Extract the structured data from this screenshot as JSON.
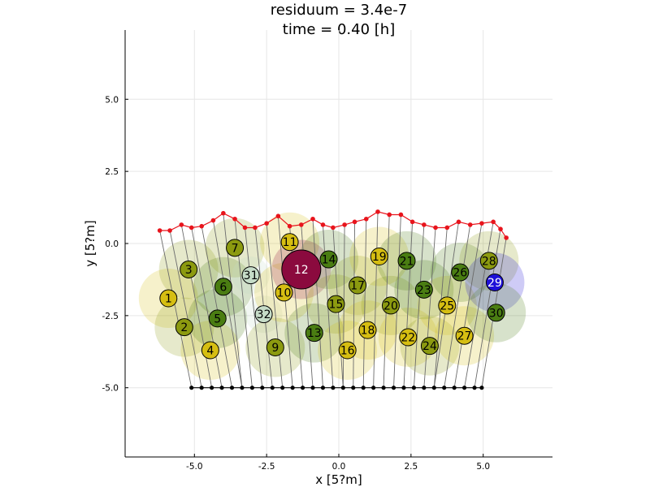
{
  "chart_data": {
    "type": "scatter",
    "title_lines": [
      "residuum = 3.4e-7",
      "time = 0.40 [h]"
    ],
    "xlabel": "x [5?m]",
    "ylabel": "y [5?m]",
    "xlim": [
      -7.4,
      7.4
    ],
    "ylim": [
      -7.4,
      7.4
    ],
    "xticks": [
      -5.0,
      -2.5,
      0.0,
      2.5,
      5.0
    ],
    "yticks": [
      -5.0,
      -2.5,
      0.0,
      2.5,
      5.0
    ],
    "xtick_labels": [
      "-5.0",
      "-2.5",
      "0.0",
      "2.5",
      "5.0"
    ],
    "ytick_labels": [
      "-5.0",
      "-2.5",
      "0.0",
      "2.5",
      "5.0"
    ],
    "grid": true,
    "colors": {
      "surface_red": "#e8141c",
      "base_black": "#000000",
      "spring_gray": "#6b6b6b",
      "yellow": "#d6be12",
      "olive": "#8c9a10",
      "green": "#4a7d12",
      "pale": "#c6dcc8",
      "darkred": "#8b0a3e",
      "blue": "#1e10d8"
    },
    "surface_points": [
      [
        -6.2,
        0.45
      ],
      [
        -5.85,
        0.45
      ],
      [
        -5.45,
        0.65
      ],
      [
        -5.1,
        0.55
      ],
      [
        -4.75,
        0.6
      ],
      [
        -4.35,
        0.8
      ],
      [
        -4.0,
        1.05
      ],
      [
        -3.6,
        0.85
      ],
      [
        -3.25,
        0.55
      ],
      [
        -2.9,
        0.55
      ],
      [
        -2.5,
        0.7
      ],
      [
        -2.1,
        0.95
      ],
      [
        -1.7,
        0.6
      ],
      [
        -1.3,
        0.65
      ],
      [
        -0.9,
        0.85
      ],
      [
        -0.55,
        0.65
      ],
      [
        -0.2,
        0.55
      ],
      [
        0.2,
        0.65
      ],
      [
        0.55,
        0.75
      ],
      [
        0.95,
        0.85
      ],
      [
        1.35,
        1.1
      ],
      [
        1.75,
        1.0
      ],
      [
        2.15,
        1.0
      ],
      [
        2.55,
        0.75
      ],
      [
        2.95,
        0.65
      ],
      [
        3.35,
        0.55
      ],
      [
        3.75,
        0.55
      ],
      [
        4.15,
        0.75
      ],
      [
        4.55,
        0.65
      ],
      [
        4.95,
        0.7
      ],
      [
        5.35,
        0.75
      ],
      [
        5.6,
        0.5
      ],
      [
        5.8,
        0.2
      ]
    ],
    "base_points": [
      [
        -5.1,
        -5.0
      ],
      [
        -4.75,
        -5.0
      ],
      [
        -4.4,
        -5.0
      ],
      [
        -4.05,
        -5.0
      ],
      [
        -3.7,
        -5.0
      ],
      [
        -3.35,
        -5.0
      ],
      [
        -3.0,
        -5.0
      ],
      [
        -2.65,
        -5.0
      ],
      [
        -2.3,
        -5.0
      ],
      [
        -1.95,
        -5.0
      ],
      [
        -1.6,
        -5.0
      ],
      [
        -1.25,
        -5.0
      ],
      [
        -0.9,
        -5.0
      ],
      [
        -0.55,
        -5.0
      ],
      [
        -0.2,
        -5.0
      ],
      [
        0.15,
        -5.0
      ],
      [
        0.5,
        -5.0
      ],
      [
        0.85,
        -5.0
      ],
      [
        1.2,
        -5.0
      ],
      [
        1.55,
        -5.0
      ],
      [
        1.9,
        -5.0
      ],
      [
        2.25,
        -5.0
      ],
      [
        2.6,
        -5.0
      ],
      [
        2.95,
        -5.0
      ],
      [
        3.3,
        -5.0
      ],
      [
        3.65,
        -5.0
      ],
      [
        4.0,
        -5.0
      ],
      [
        4.35,
        -5.0
      ],
      [
        4.7,
        -5.0
      ],
      [
        4.95,
        -5.0
      ]
    ],
    "cells": [
      {
        "id": "1",
        "x": -5.9,
        "y": -1.9,
        "r": 0.95,
        "color": "yellow",
        "text": "#000"
      },
      {
        "id": "2",
        "x": -5.35,
        "y": -2.9,
        "r": 0.95,
        "color": "olive",
        "text": "#000"
      },
      {
        "id": "3",
        "x": -5.2,
        "y": -0.9,
        "r": 0.95,
        "color": "olive",
        "text": "#000"
      },
      {
        "id": "4",
        "x": -4.45,
        "y": -3.7,
        "r": 0.95,
        "color": "yellow",
        "text": "#000"
      },
      {
        "id": "5",
        "x": -4.2,
        "y": -2.6,
        "r": 0.95,
        "color": "green",
        "text": "#000"
      },
      {
        "id": "6",
        "x": -4.0,
        "y": -1.5,
        "r": 0.95,
        "color": "green",
        "text": "#000"
      },
      {
        "id": "7",
        "x": -3.6,
        "y": -0.15,
        "r": 0.95,
        "color": "olive",
        "text": "#000"
      },
      {
        "id": "31",
        "x": -3.05,
        "y": -1.1,
        "r": 0.6,
        "color": "pale",
        "text": "#000"
      },
      {
        "id": "32",
        "x": -2.6,
        "y": -2.45,
        "r": 0.6,
        "color": "pale",
        "text": "#000"
      },
      {
        "id": "9",
        "x": -2.2,
        "y": -3.6,
        "r": 0.95,
        "color": "olive",
        "text": "#000"
      },
      {
        "id": "10",
        "x": -1.9,
        "y": -1.7,
        "r": 0.95,
        "color": "yellow",
        "text": "#000"
      },
      {
        "id": "11",
        "x": -1.7,
        "y": 0.05,
        "r": 0.95,
        "color": "yellow",
        "text": "#000"
      },
      {
        "id": "12",
        "x": -1.3,
        "y": -0.9,
        "r": 0.95,
        "color": "darkred",
        "text": "#fff",
        "large": true
      },
      {
        "id": "13",
        "x": -0.85,
        "y": -3.1,
        "r": 0.95,
        "color": "green",
        "text": "#000"
      },
      {
        "id": "14",
        "x": -0.35,
        "y": -0.55,
        "r": 0.95,
        "color": "green",
        "text": "#000"
      },
      {
        "id": "15",
        "x": -0.1,
        "y": -2.1,
        "r": 0.95,
        "color": "olive",
        "text": "#000"
      },
      {
        "id": "16",
        "x": 0.3,
        "y": -3.7,
        "r": 0.95,
        "color": "yellow",
        "text": "#000"
      },
      {
        "id": "17",
        "x": 0.65,
        "y": -1.45,
        "r": 0.95,
        "color": "olive",
        "text": "#000"
      },
      {
        "id": "18",
        "x": 1.0,
        "y": -3.0,
        "r": 0.95,
        "color": "yellow",
        "text": "#000"
      },
      {
        "id": "19",
        "x": 1.4,
        "y": -0.45,
        "r": 0.95,
        "color": "yellow",
        "text": "#000"
      },
      {
        "id": "20",
        "x": 1.8,
        "y": -2.15,
        "r": 0.95,
        "color": "olive",
        "text": "#000"
      },
      {
        "id": "21",
        "x": 2.35,
        "y": -0.6,
        "r": 0.95,
        "color": "green",
        "text": "#000"
      },
      {
        "id": "22",
        "x": 2.4,
        "y": -3.25,
        "r": 0.95,
        "color": "yellow",
        "text": "#000"
      },
      {
        "id": "23",
        "x": 2.95,
        "y": -1.6,
        "r": 0.95,
        "color": "green",
        "text": "#000"
      },
      {
        "id": "24",
        "x": 3.15,
        "y": -3.55,
        "r": 0.95,
        "color": "olive",
        "text": "#000"
      },
      {
        "id": "25",
        "x": 3.75,
        "y": -2.15,
        "r": 0.95,
        "color": "yellow",
        "text": "#000"
      },
      {
        "id": "26",
        "x": 4.2,
        "y": -1.0,
        "r": 0.95,
        "color": "green",
        "text": "#000"
      },
      {
        "id": "27",
        "x": 4.35,
        "y": -3.2,
        "r": 0.95,
        "color": "yellow",
        "text": "#000"
      },
      {
        "id": "28",
        "x": 5.2,
        "y": -0.6,
        "r": 0.95,
        "color": "olive",
        "text": "#000"
      },
      {
        "id": "29",
        "x": 5.4,
        "y": -1.35,
        "r": 0.95,
        "color": "blue",
        "text": "#fff"
      },
      {
        "id": "30",
        "x": 5.45,
        "y": -2.4,
        "r": 0.95,
        "color": "green",
        "text": "#000"
      }
    ]
  }
}
